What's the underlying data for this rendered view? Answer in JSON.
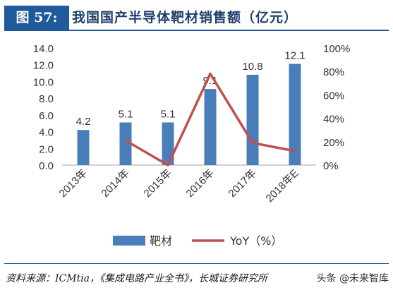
{
  "header": {
    "label": "图 57:",
    "title": "我国国产半导体靶材销售额（亿元）"
  },
  "chart_data": {
    "type": "bar",
    "categories": [
      "2013年",
      "2014年",
      "2015年",
      "2016年",
      "2017年",
      "2018年E"
    ],
    "series": [
      {
        "name": "靶材",
        "type": "bar",
        "axis": "left",
        "values": [
          4.2,
          5.1,
          5.1,
          9.1,
          10.8,
          12.1
        ],
        "data_labels": [
          "4.2",
          "5.1",
          "5.1",
          "9.1",
          "10.8",
          "12.1"
        ],
        "color": "#4a7ebb"
      },
      {
        "name": "YoY（%）",
        "type": "line",
        "axis": "right",
        "values": [
          null,
          21,
          0,
          78,
          19,
          12
        ],
        "color": "#c0504d"
      }
    ],
    "left_axis": {
      "min": 0,
      "max": 14,
      "ticks": [
        "0.0",
        "2.0",
        "4.0",
        "6.0",
        "8.0",
        "10.0",
        "12.0",
        "14.0"
      ]
    },
    "right_axis": {
      "min": 0,
      "max": 100,
      "ticks": [
        "0%",
        "20%",
        "40%",
        "60%",
        "80%",
        "100%"
      ]
    },
    "grid": false,
    "legend_position": "bottom"
  },
  "source": "资料来源：ICMtia，《集成电路产业全书》，长城证券研究所",
  "watermark": "头条 @未来智库"
}
